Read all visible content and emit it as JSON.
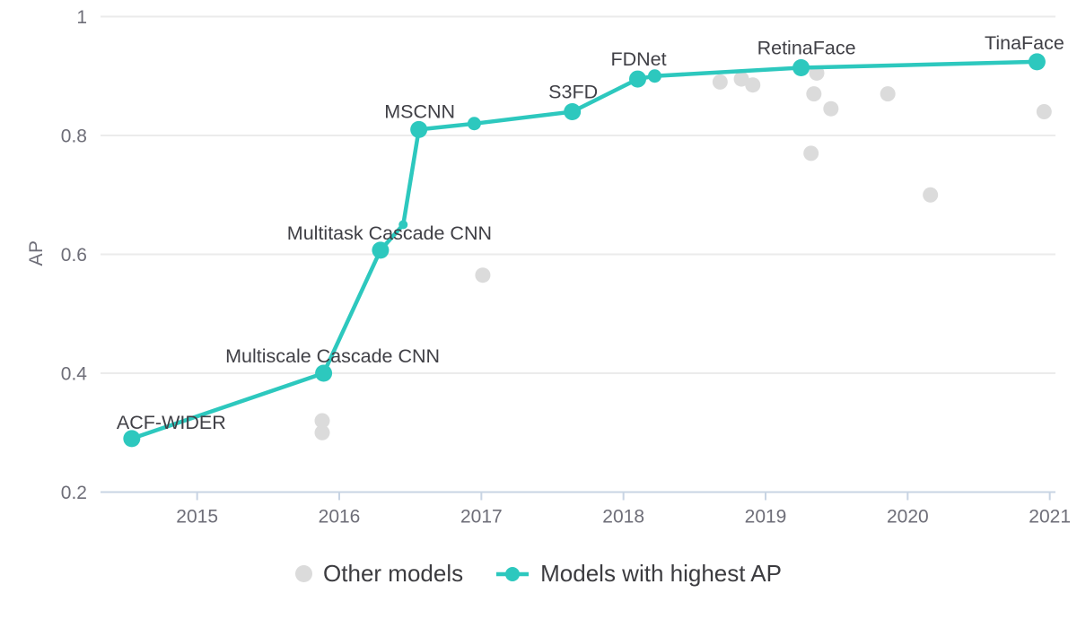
{
  "colors": {
    "background": "#ffffff",
    "accent_teal": "#2dc8be",
    "other_gray": "#dbdbdb",
    "grid": "#ebebeb",
    "axis": "#c8d4e3",
    "tick_text": "#6e6e78",
    "annotation_text": "#404046",
    "legend_text": "#3c3c40"
  },
  "chart_data": {
    "type": "scatter",
    "title": "",
    "xlabel": "",
    "ylabel": "AP",
    "xlim": [
      2014.32,
      2021.04
    ],
    "ylim": [
      0.2,
      1.0
    ],
    "xticks": [
      2015,
      2016,
      2017,
      2018,
      2019,
      2020,
      2021
    ],
    "yticks": [
      0.2,
      0.4,
      0.6,
      0.8,
      1
    ],
    "ytick_labels": [
      "0.2",
      "0.4",
      "0.6",
      "0.8",
      "1"
    ],
    "grid": "horizontal",
    "legend_position": "bottom-center",
    "series": [
      {
        "name": "Other models",
        "mode": "markers",
        "color": "#dbdbdb",
        "marker_radius": 8.5,
        "points": [
          {
            "x": 2015.88,
            "y": 0.32
          },
          {
            "x": 2015.88,
            "y": 0.3
          },
          {
            "x": 2017.01,
            "y": 0.565
          },
          {
            "x": 2018.68,
            "y": 0.89
          },
          {
            "x": 2018.83,
            "y": 0.895
          },
          {
            "x": 2018.91,
            "y": 0.885
          },
          {
            "x": 2019.32,
            "y": 0.77
          },
          {
            "x": 2019.34,
            "y": 0.87
          },
          {
            "x": 2019.36,
            "y": 0.905
          },
          {
            "x": 2019.46,
            "y": 0.845
          },
          {
            "x": 2019.86,
            "y": 0.87
          },
          {
            "x": 2020.16,
            "y": 0.7
          },
          {
            "x": 2020.96,
            "y": 0.84
          }
        ]
      },
      {
        "name": "Models with highest AP",
        "mode": "lines+markers",
        "color": "#2dc8be",
        "line_width": 4.5,
        "points": [
          {
            "x": 2014.54,
            "y": 0.29,
            "label": "ACF-WIDER",
            "r": 9.5,
            "label_dx": 44,
            "label_dy": -11
          },
          {
            "x": 2015.89,
            "y": 0.4,
            "label": "Multiscale Cascade CNN",
            "r": 9.5,
            "label_dx": 10,
            "label_dy": -12
          },
          {
            "x": 2016.29,
            "y": 0.607,
            "label": "Multitask Cascade CNN",
            "r": 9.5,
            "label_dx": 10,
            "label_dy": -12
          },
          {
            "x": 2016.45,
            "y": 0.65,
            "r": 5
          },
          {
            "x": 2016.56,
            "y": 0.81,
            "label": "MSCNN",
            "r": 9.5,
            "label_dx": 1,
            "label_dy": -13
          },
          {
            "x": 2016.95,
            "y": 0.82,
            "r": 7.5
          },
          {
            "x": 2017.64,
            "y": 0.84,
            "label": "S3FD",
            "r": 9.5,
            "label_dx": 1,
            "label_dy": -15
          },
          {
            "x": 2018.1,
            "y": 0.895,
            "label": "FDNet",
            "r": 9.5,
            "label_dx": 1,
            "label_dy": -15
          },
          {
            "x": 2018.22,
            "y": 0.9,
            "r": 7.5
          },
          {
            "x": 2019.25,
            "y": 0.914,
            "label": "RetinaFace",
            "r": 9.5,
            "label_dx": 6,
            "label_dy": -15
          },
          {
            "x": 2020.91,
            "y": 0.924,
            "label": "TinaFace",
            "r": 9.5,
            "label_dx": -14,
            "label_dy": -14
          }
        ]
      }
    ]
  }
}
